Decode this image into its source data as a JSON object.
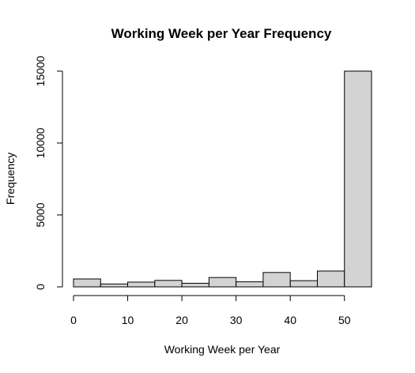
{
  "chart_data": {
    "type": "bar",
    "title": "Working Week per Year Frequency",
    "xlabel": "Working Week per Year",
    "ylabel": "Frequency",
    "bins": [
      {
        "start": 0,
        "end": 5,
        "value": 550
      },
      {
        "start": 5,
        "end": 10,
        "value": 200
      },
      {
        "start": 10,
        "end": 15,
        "value": 330
      },
      {
        "start": 15,
        "end": 20,
        "value": 450
      },
      {
        "start": 20,
        "end": 25,
        "value": 250
      },
      {
        "start": 25,
        "end": 30,
        "value": 650
      },
      {
        "start": 30,
        "end": 35,
        "value": 350
      },
      {
        "start": 35,
        "end": 40,
        "value": 1000
      },
      {
        "start": 40,
        "end": 45,
        "value": 430
      },
      {
        "start": 45,
        "end": 50,
        "value": 1100
      },
      {
        "start": 50,
        "end": 55,
        "value": 15000
      }
    ],
    "xlim": [
      0,
      55
    ],
    "ylim": [
      0,
      15000
    ],
    "xticks": [
      0,
      10,
      20,
      30,
      40,
      50
    ],
    "yticks": [
      0,
      5000,
      10000,
      15000
    ],
    "grid": false,
    "colors": {
      "bar_fill": "#d3d3d3",
      "bar_stroke": "#000000"
    }
  }
}
